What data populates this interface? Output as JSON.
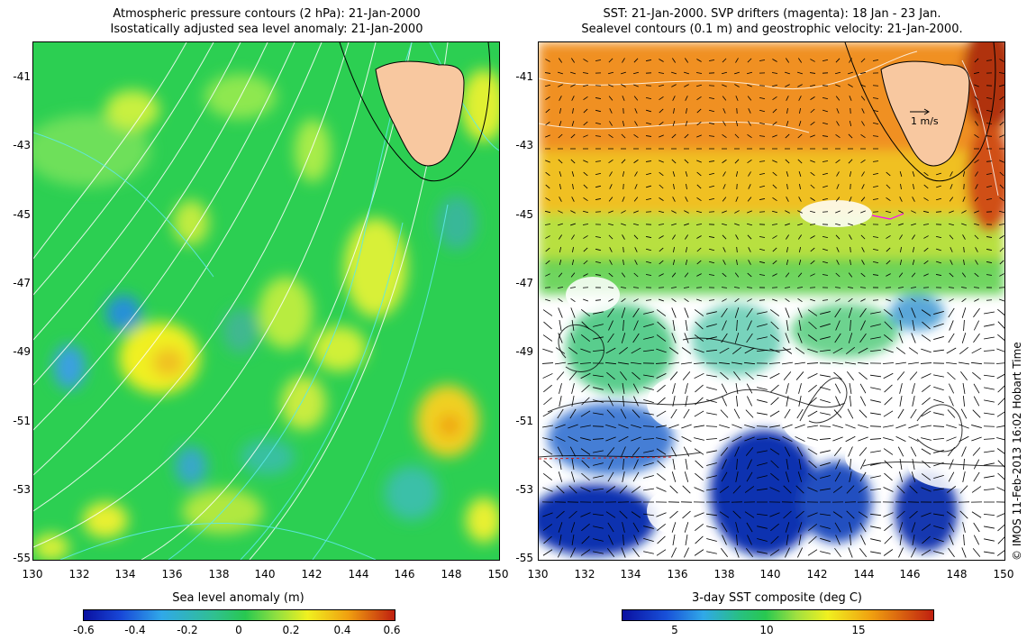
{
  "left_panel": {
    "title_line1": "Atmospheric pressure contours (2 hPa): 21-Jan-2000",
    "title_line2": "Isostatically adjusted sea level anomaly: 21-Jan-2000",
    "colorbar_label": "Sea level anomaly (m)",
    "colorbar_ticks": [
      "-0.6",
      "-0.4",
      "-0.2",
      "0",
      "0.2",
      "0.4",
      "0.6"
    ]
  },
  "right_panel": {
    "title_line1": "SST: 21-Jan-2000. SVP drifters (magenta): 18 Jan - 23 Jan.",
    "title_line2": "Sealevel contours (0.1 m) and geostrophic velocity: 21-Jan-2000.",
    "colorbar_label": "3-day SST composite (deg C)",
    "colorbar_ticks": [
      "5",
      "10",
      "15"
    ],
    "velocity_scale_label": "1 m/s"
  },
  "axes": {
    "x_ticks": [
      "130",
      "132",
      "134",
      "136",
      "138",
      "140",
      "142",
      "144",
      "146",
      "148",
      "150"
    ],
    "y_ticks": [
      "-41",
      "-43",
      "-45",
      "-47",
      "-49",
      "-51",
      "-53",
      "-55"
    ]
  },
  "credit": "© IMOS 11-Feb-2013 16:02 Hobart Time",
  "colors": {
    "land": "#f8c8a0",
    "contour_cyan": "#5ee8e8",
    "contour_white": "#ffffff",
    "sla_base": "#27c94e",
    "sst_warm": "#f0a020",
    "sst_cold": "#1030c0"
  }
}
